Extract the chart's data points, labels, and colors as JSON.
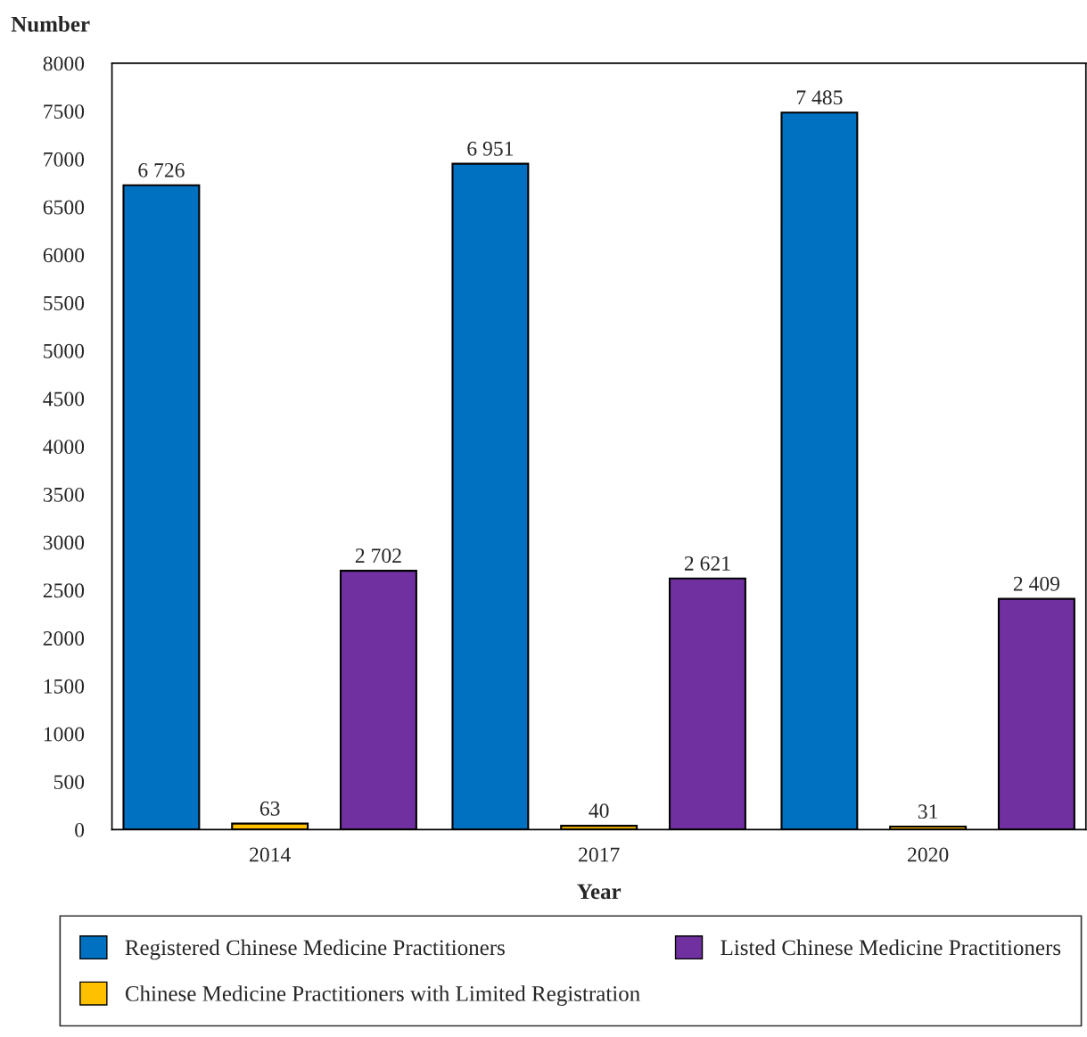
{
  "chart_data": {
    "type": "bar",
    "xlabel": "Year",
    "ylabel": "Number",
    "categories": [
      "2014",
      "2017",
      "2020"
    ],
    "series": [
      {
        "name": "Registered Chinese Medicine Practitioners",
        "color": "#0070c0",
        "values": [
          6726,
          6951,
          7485
        ],
        "value_labels": [
          "6 726",
          "6 951",
          "7 485"
        ]
      },
      {
        "name": "Chinese Medicine Practitioners with Limited Registration",
        "color": "#ffc000",
        "values": [
          63,
          40,
          31
        ],
        "value_labels": [
          "63",
          "40",
          "31"
        ]
      },
      {
        "name": "Listed Chinese Medicine Practitioners",
        "color": "#7030a0",
        "values": [
          2702,
          2621,
          2409
        ],
        "value_labels": [
          "2 702",
          "2 621",
          "2 409"
        ]
      }
    ],
    "ylim": [
      0,
      8000
    ],
    "yticks": [
      0,
      500,
      1000,
      1500,
      2000,
      2500,
      3000,
      3500,
      4000,
      4500,
      5000,
      5500,
      6000,
      6500,
      7000,
      7500,
      8000
    ],
    "grid": false,
    "legend": "bottom"
  }
}
